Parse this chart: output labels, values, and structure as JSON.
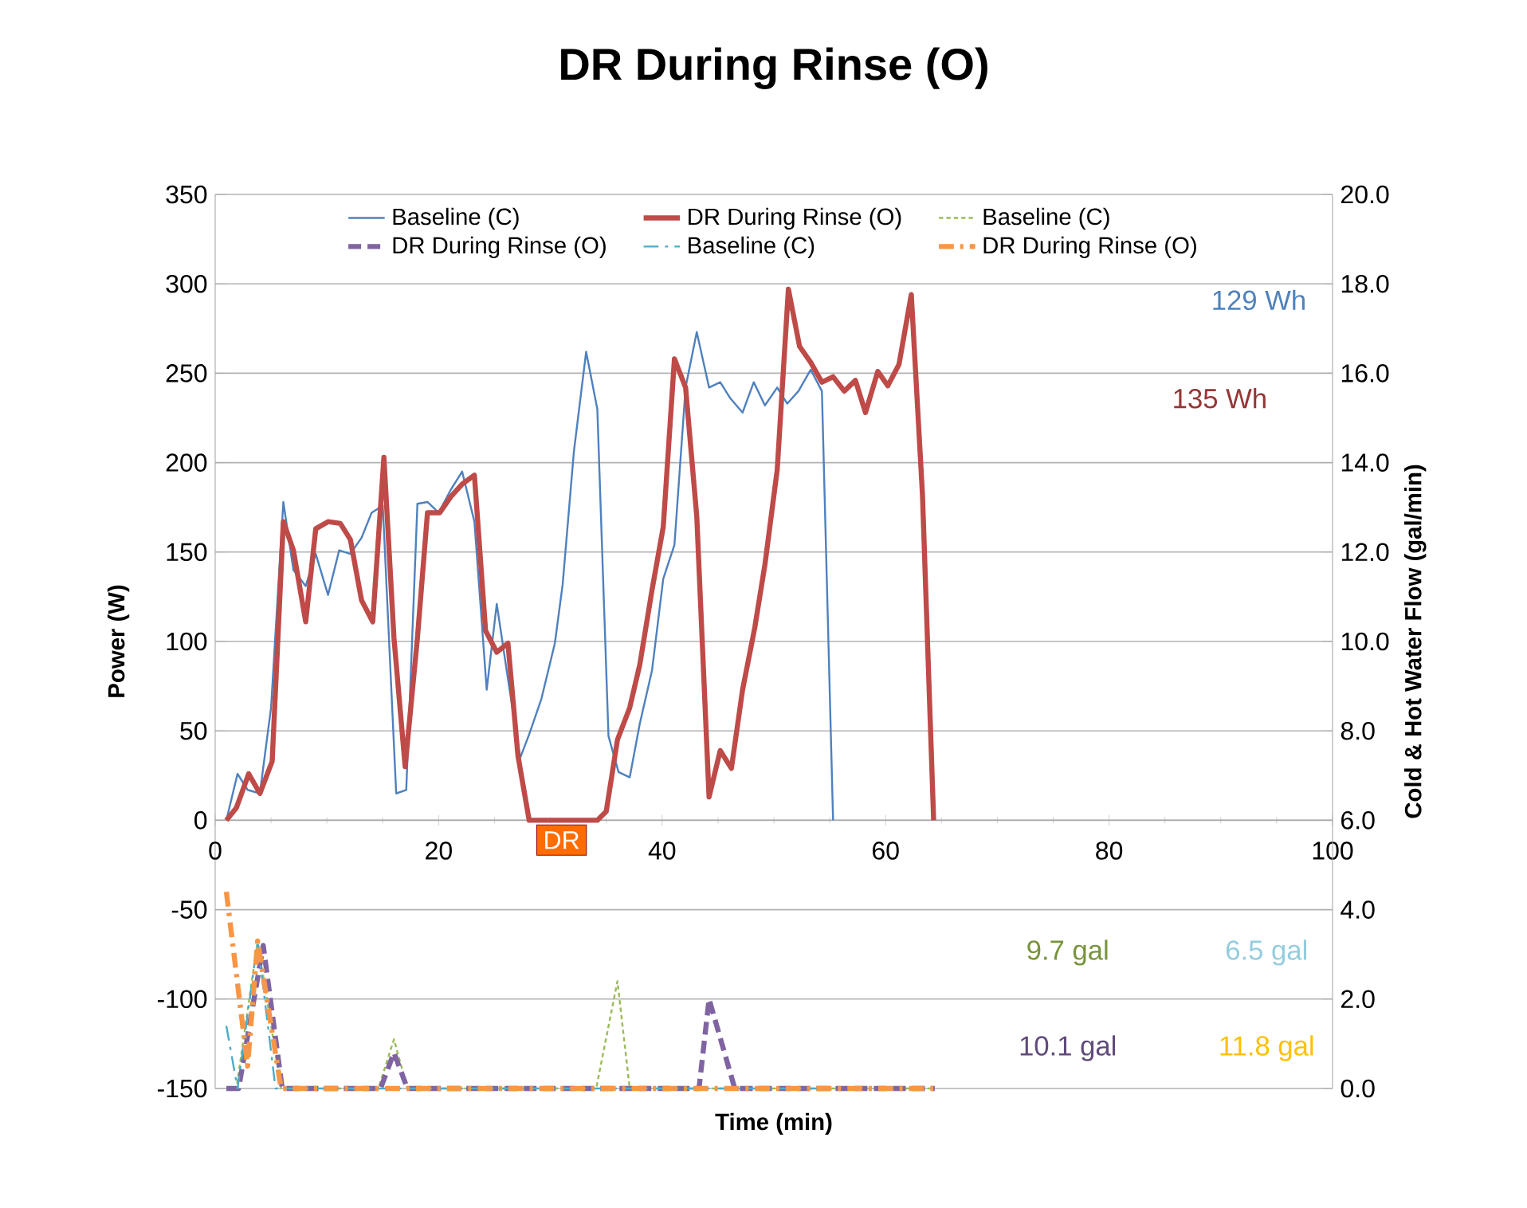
{
  "chart_data": {
    "type": "line",
    "title": "DR During Rinse (O)",
    "xlabel": "Time (min)",
    "ylabel": "Power (W)",
    "y2label": "Cold & Hot Water Flow (gal/min)",
    "xlim": [
      0,
      100
    ],
    "xticks": [
      0,
      20,
      40,
      60,
      80,
      100
    ],
    "ylim": [
      -150,
      350
    ],
    "yticks": [
      -150,
      -100,
      -50,
      0,
      50,
      100,
      150,
      200,
      250,
      300,
      350
    ],
    "y2lim": [
      0,
      20
    ],
    "y2ticks": [
      {
        "value": 0,
        "label": "0.0"
      },
      {
        "value": 2,
        "label": "2.0"
      },
      {
        "value": 4,
        "label": "4.0"
      },
      {
        "value": 6,
        "label": "6.0"
      },
      {
        "value": 8,
        "label": "8.0"
      },
      {
        "value": 10,
        "label": "10.0"
      },
      {
        "value": 12,
        "label": "12.0"
      },
      {
        "value": 14,
        "label": "14.0"
      },
      {
        "value": 16,
        "label": "16.0"
      },
      {
        "value": 18,
        "label": "18.0"
      },
      {
        "value": 20,
        "label": "20.0"
      }
    ],
    "grid": "y",
    "legend": "top",
    "series": [
      {
        "name": "Baseline (C)",
        "color": "#4f81bd",
        "line_style": "solid",
        "x": [
          1,
          2,
          2.9,
          4,
          5,
          6.1,
          7,
          8.1,
          9,
          10.1,
          11.1,
          12.1,
          13.1,
          14,
          15,
          16.2,
          17.1,
          18.1,
          19,
          20,
          21.1,
          22.1,
          23.2,
          24.3,
          25.2,
          26.3,
          27.3,
          28.1,
          29.2,
          30.4,
          31.1,
          32.1,
          33.2,
          34.2,
          35.2,
          36.1,
          37.1,
          38,
          39.1,
          40.1,
          41.1,
          42.1,
          43.1,
          44.2,
          45.2,
          46.1,
          47.2,
          48.2,
          49.2,
          50.3,
          51.2,
          52.2,
          53.3,
          54.3,
          55.3
        ],
        "values": [
          0,
          26,
          17,
          15,
          63,
          178,
          140,
          131,
          149,
          126,
          151,
          149,
          158,
          172,
          176,
          15,
          17,
          177,
          178,
          172,
          185,
          195,
          167,
          73,
          121,
          75,
          35,
          48,
          68,
          99,
          132,
          206,
          262,
          230,
          47,
          27,
          24,
          54,
          84,
          135,
          154,
          242,
          273,
          242,
          245,
          236,
          228,
          245,
          232,
          242,
          233,
          240,
          252,
          240,
          0
        ]
      },
      {
        "name": "DR During Rinse (O)",
        "color": "#be4b48",
        "line_style": "solid",
        "x": [
          1,
          1.9,
          3,
          4,
          5.1,
          6.1,
          7,
          8.1,
          9,
          10.1,
          11.2,
          12.1,
          13.1,
          14.1,
          15.1,
          16,
          17,
          18.1,
          19,
          20.1,
          21.1,
          22.1,
          23.2,
          24.2,
          25.2,
          26.2,
          27.1,
          28.1,
          34.2,
          35,
          36,
          37.1,
          38,
          39.1,
          40.1,
          41.1,
          42.1,
          43.1,
          44.2,
          45.2,
          46.2,
          47.2,
          48.3,
          49.2,
          50.3,
          51.3,
          52.3,
          53.3,
          54.3,
          55.3,
          56.3,
          57.3,
          58.2,
          59.3,
          60.2,
          61.2,
          62.3,
          63.3,
          64.3
        ],
        "values": [
          0,
          7,
          26,
          15,
          33,
          167,
          151,
          111,
          163,
          167,
          166,
          157,
          123,
          111,
          203,
          102,
          30,
          102,
          172,
          172,
          181,
          188,
          193,
          106,
          94,
          99,
          36,
          0,
          0,
          5,
          45,
          63,
          87,
          129,
          164,
          258,
          242,
          170,
          13,
          39,
          29,
          73,
          108,
          143,
          196,
          297,
          265,
          256,
          245,
          248,
          240,
          246,
          228,
          251,
          243,
          255,
          294,
          182,
          0
        ]
      },
      {
        "name": "Baseline (C)",
        "color": "#9bbb59",
        "line_style": "dotted",
        "axis": "y2",
        "x": [
          1,
          1.9,
          3.8,
          5.9,
          14.6,
          16,
          17.2,
          34.1,
          36,
          37.1,
          64
        ],
        "values": [
          0,
          0,
          3.3,
          0,
          0,
          1.1,
          0,
          0,
          2.4,
          0,
          0
        ]
      },
      {
        "name": "DR During Rinse (O)",
        "color": "#8064a2",
        "line_style": "dashed",
        "axis": "y2",
        "x": [
          1,
          2.1,
          4.3,
          6,
          14.8,
          16,
          17.2,
          43.3,
          44.2,
          46.5,
          64.4
        ],
        "values": [
          0,
          0,
          3.2,
          0,
          0,
          0.8,
          0,
          0,
          2,
          0,
          0
        ]
      },
      {
        "name": "Baseline (C)",
        "color": "#4bacc6",
        "line_style": "dashdot",
        "axis": "y2",
        "x": [
          1,
          2,
          3.8,
          5.4,
          55
        ],
        "values": [
          1.4,
          0,
          3.3,
          0,
          0
        ]
      },
      {
        "name": "DR During Rinse (O)",
        "color": "#f79646",
        "line_style": "dashdot",
        "axis": "y2",
        "x": [
          1,
          2.9,
          3.8,
          5.9,
          64.4
        ],
        "values": [
          4.4,
          0.5,
          3.3,
          0,
          0
        ]
      }
    ],
    "annotations": [
      "129 Wh",
      "135 Wh",
      "9.7 gal",
      "6.5 gal",
      "10.1 gal",
      "11.8 gal",
      {
        "text": "DR",
        "x": 31,
        "y": 0
      }
    ]
  }
}
